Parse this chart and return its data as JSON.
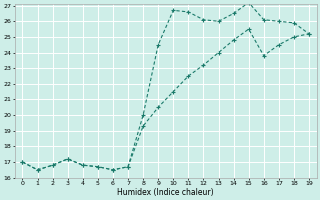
{
  "xlabel": "Humidex (Indice chaleur)",
  "x": [
    0,
    1,
    2,
    3,
    4,
    5,
    6,
    7,
    8,
    9,
    10,
    11,
    12,
    13,
    14,
    15,
    16,
    17,
    18,
    19
  ],
  "line1": [
    17.0,
    16.5,
    16.8,
    17.2,
    16.8,
    16.7,
    16.5,
    16.7,
    20.0,
    24.5,
    26.7,
    26.6,
    26.1,
    26.0,
    26.5,
    27.2,
    26.1,
    26.0,
    25.9,
    25.2
  ],
  "line2": [
    17.0,
    16.5,
    16.8,
    17.2,
    16.8,
    16.7,
    16.5,
    16.7,
    19.3,
    20.5,
    21.5,
    22.5,
    23.2,
    24.0,
    24.8,
    25.5,
    23.8,
    24.5,
    25.0,
    25.2
  ],
  "ylim": [
    16,
    27
  ],
  "xlim": [
    -0.5,
    19.5
  ],
  "yticks": [
    16,
    17,
    18,
    19,
    20,
    21,
    22,
    23,
    24,
    25,
    26,
    27
  ],
  "xticks": [
    0,
    1,
    2,
    3,
    4,
    5,
    6,
    7,
    8,
    9,
    10,
    11,
    12,
    13,
    14,
    15,
    16,
    17,
    18,
    19
  ],
  "line_color": "#1a7a6a",
  "bg_color": "#ceeee8",
  "grid_color": "#ffffff",
  "marker": "+"
}
